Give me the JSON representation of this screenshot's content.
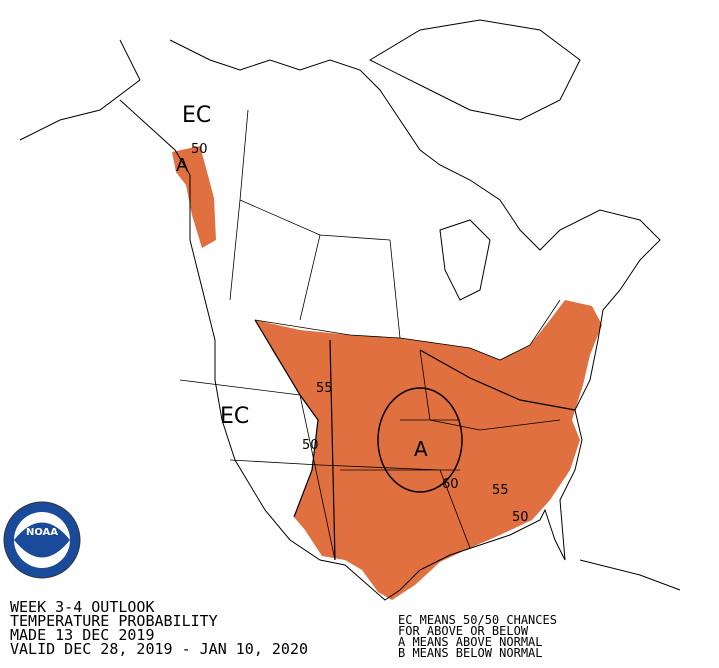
{
  "map": {
    "region_labels": [
      "EC",
      "A",
      "EC",
      "A"
    ],
    "contour_labels": [
      "50",
      "55",
      "50",
      "60",
      "55",
      "50"
    ]
  },
  "info": {
    "lines": [
      "WEEK 3-4 OUTLOOK",
      "TEMPERATURE PROBABILITY",
      "MADE  13 DEC 2019",
      "VALID  DEC 28, 2019 - JAN 10, 2020"
    ]
  },
  "legend": {
    "lines": [
      "EC MEANS 50/50 CHANCES",
      "FOR ABOVE OR BELOW",
      "A MEANS ABOVE NORMAL",
      "B MEANS BELOW NORMAL"
    ]
  },
  "logo": {
    "text": "NOAA"
  }
}
